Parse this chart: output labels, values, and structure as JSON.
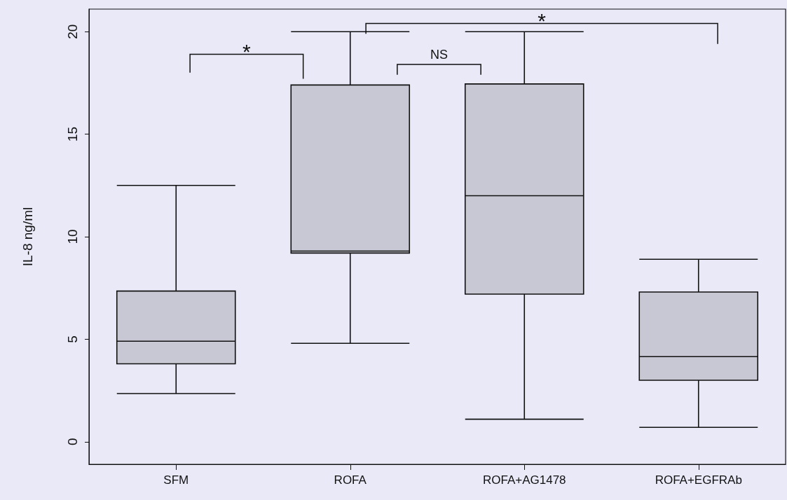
{
  "chart_data": {
    "type": "box",
    "ylabel": "IL-8 ng/ml",
    "categories": [
      "SFM",
      "ROFA",
      "ROFA+AG1478",
      "ROFA+EGFRAb"
    ],
    "boxes": [
      {
        "low": 2.35,
        "q1": 3.8,
        "median": 4.9,
        "q3": 7.35,
        "high": 12.5
      },
      {
        "low": 4.8,
        "q1": 9.2,
        "median": 9.3,
        "q3": 17.4,
        "high": 20
      },
      {
        "low": 1.1,
        "q1": 7.2,
        "median": 12.0,
        "q3": 17.45,
        "high": 20
      },
      {
        "low": 0.7,
        "q1": 3.0,
        "median": 4.15,
        "q3": 7.3,
        "high": 8.9
      }
    ],
    "color": "#c8c8d4",
    "ylim": [
      -1.1,
      21.1
    ],
    "yticks": [
      0,
      5,
      10,
      15,
      20
    ],
    "grid": false,
    "annotations": [
      "*",
      "NS",
      "*"
    ]
  }
}
